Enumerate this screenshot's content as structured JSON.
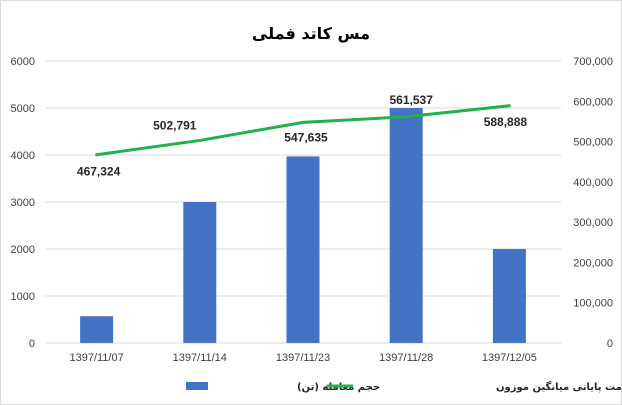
{
  "chart_data": {
    "type": "bar",
    "title": "مس کاتد فملی",
    "categories": [
      "1397/11/07",
      "1397/11/14",
      "1397/11/23",
      "1397/11/28",
      "1397/12/05"
    ],
    "series": [
      {
        "name": "حجم معامله (تن)",
        "type": "bar",
        "axis": "left",
        "values": [
          570,
          3000,
          3970,
          5000,
          2000
        ]
      },
      {
        "name": "قیمت پایانی میانگین موزون",
        "type": "line",
        "axis": "right",
        "values": [
          467324,
          502791,
          547635,
          561537,
          588888
        ],
        "labels": [
          "467,324",
          "502,791",
          "547,635",
          "561,537",
          "588,888"
        ]
      }
    ],
    "y_left": {
      "min": 0,
      "max": 6000,
      "ticks": [
        "0",
        "1000",
        "2000",
        "3000",
        "4000",
        "5000",
        "6000"
      ]
    },
    "y_right": {
      "min": 0,
      "max": 700000,
      "ticks": [
        "0",
        "100,000",
        "200,000",
        "300,000",
        "400,000",
        "500,000",
        "600,000",
        "700,000"
      ]
    },
    "grid": true,
    "legend": "bottom",
    "colors": {
      "bar": "#4472c4",
      "line": "#22b14c"
    }
  }
}
